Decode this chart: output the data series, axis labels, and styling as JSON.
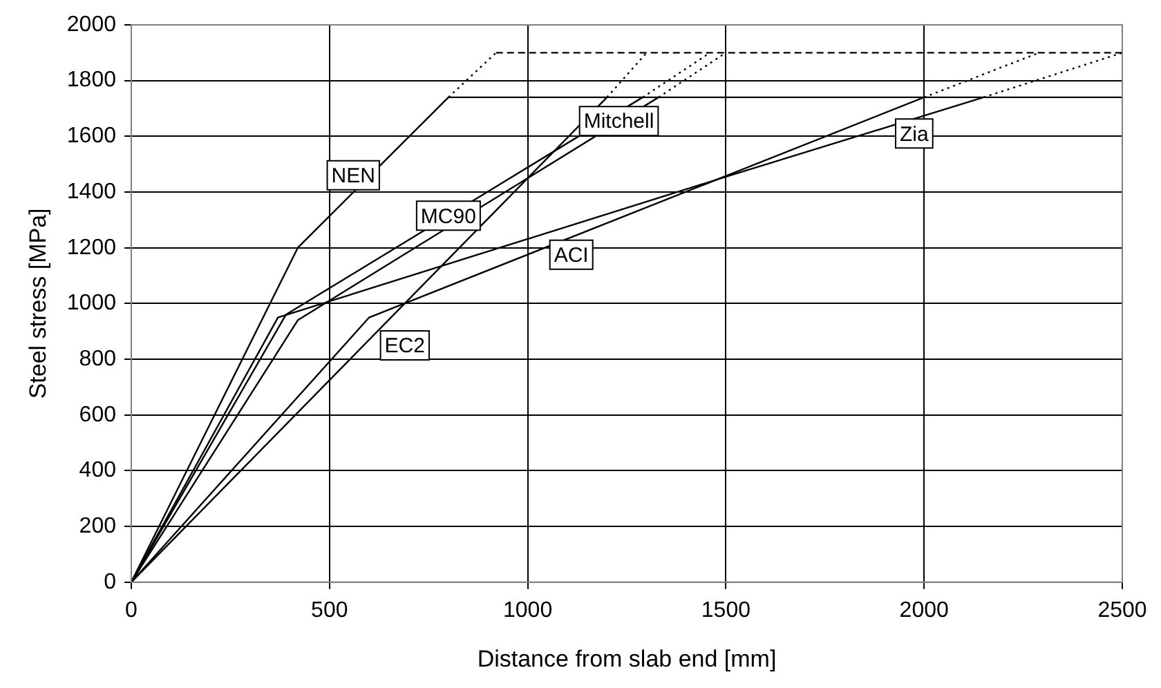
{
  "chart_data": {
    "type": "line",
    "xlabel": "Distance from slab end [mm]",
    "ylabel": "Steel stress [MPa]",
    "xlim": [
      0,
      2500
    ],
    "xticks": [
      0,
      500,
      1000,
      1500,
      2000,
      2500
    ],
    "ylim": [
      0,
      2000
    ],
    "yticks": [
      0,
      200,
      400,
      600,
      800,
      1000,
      1200,
      1400,
      1600,
      1800,
      2000
    ],
    "grid": true,
    "legend": false,
    "marker": "none",
    "series": [
      {
        "color": "#000000",
        "line_style": "solid",
        "x": [
          0,
          420,
          800
        ],
        "values": [
          0,
          1200,
          1740
        ]
      },
      {
        "color": "#000000",
        "line_style": "dotted",
        "x": [
          800,
          920
        ],
        "values": [
          1740,
          1900
        ]
      },
      {
        "color": "#000000",
        "line_style": "solid",
        "x": [
          0,
          390,
          1290
        ],
        "values": [
          0,
          960,
          1740
        ]
      },
      {
        "color": "#000000",
        "line_style": "dotted",
        "x": [
          1290,
          1460
        ],
        "values": [
          1740,
          1900
        ]
      },
      {
        "color": "#000000",
        "line_style": "solid",
        "x": [
          0,
          420,
          1330
        ],
        "values": [
          0,
          940,
          1740
        ]
      },
      {
        "color": "#000000",
        "line_style": "dotted",
        "x": [
          1330,
          1500
        ],
        "values": [
          1740,
          1900
        ]
      },
      {
        "color": "#000000",
        "line_style": "solid",
        "x": [
          0,
          1200
        ],
        "values": [
          0,
          1740
        ]
      },
      {
        "color": "#000000",
        "line_style": "dotted",
        "x": [
          1200,
          1300
        ],
        "values": [
          1740,
          1900
        ]
      },
      {
        "color": "#000000",
        "line_style": "solid",
        "x": [
          0,
          600,
          2000
        ],
        "values": [
          0,
          950,
          1740
        ]
      },
      {
        "color": "#000000",
        "line_style": "dotted",
        "x": [
          2000,
          2290
        ],
        "values": [
          1740,
          1900
        ]
      },
      {
        "color": "#000000",
        "line_style": "solid",
        "x": [
          0,
          370,
          1500,
          2150
        ],
        "values": [
          0,
          950,
          1455,
          1740
        ]
      },
      {
        "color": "#000000",
        "line_style": "dotted",
        "x": [
          2150,
          2500
        ],
        "values": [
          1740,
          1900
        ]
      },
      {
        "color": "#000000",
        "line_style": "solid",
        "x": [
          800,
          2500
        ],
        "values": [
          1740,
          1740
        ]
      },
      {
        "color": "#000000",
        "line_style": "dashed",
        "x": [
          920,
          2500
        ],
        "values": [
          1900,
          1900
        ]
      }
    ],
    "annotations": [
      {
        "text": "NEN",
        "x": 560,
        "y": 1460
      },
      {
        "text": "MC90",
        "x": 800,
        "y": 1315
      },
      {
        "text": "Mitchell",
        "x": 1230,
        "y": 1655
      },
      {
        "text": "Zia",
        "x": 1975,
        "y": 1610
      },
      {
        "text": "ACI",
        "x": 1110,
        "y": 1175
      },
      {
        "text": "EC2",
        "x": 690,
        "y": 850
      }
    ]
  }
}
